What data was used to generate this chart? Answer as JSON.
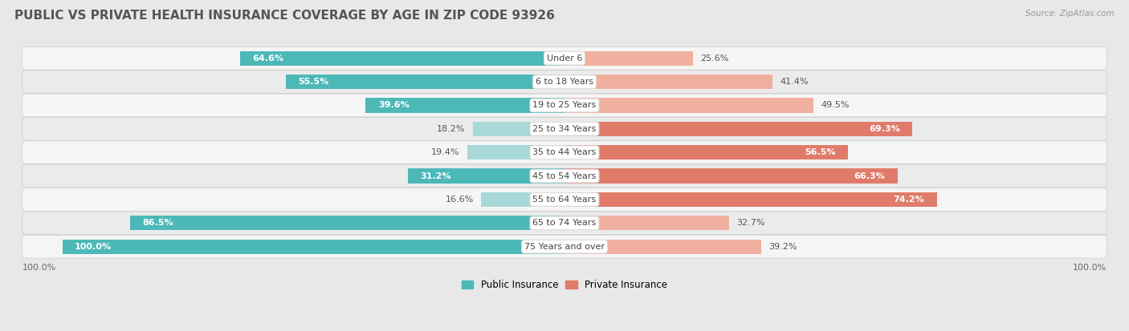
{
  "title": "PUBLIC VS PRIVATE HEALTH INSURANCE COVERAGE BY AGE IN ZIP CODE 93926",
  "source": "Source: ZipAtlas.com",
  "categories": [
    "Under 6",
    "6 to 18 Years",
    "19 to 25 Years",
    "25 to 34 Years",
    "35 to 44 Years",
    "45 to 54 Years",
    "55 to 64 Years",
    "65 to 74 Years",
    "75 Years and over"
  ],
  "public_values": [
    64.6,
    55.5,
    39.6,
    18.2,
    19.4,
    31.2,
    16.6,
    86.5,
    100.0
  ],
  "private_values": [
    25.6,
    41.4,
    49.5,
    69.3,
    56.5,
    66.3,
    74.2,
    32.7,
    39.2
  ],
  "public_color": "#4db8b8",
  "private_color": "#e07b6a",
  "public_color_light": "#a8d8d8",
  "private_color_light": "#f0b0a0",
  "background_color": "#e8e8e8",
  "row_bg_even": "#f5f5f5",
  "row_bg_odd": "#ebebeb",
  "title_fontsize": 11,
  "bar_label_fontsize": 8,
  "cat_label_fontsize": 8,
  "bar_height": 0.62,
  "max_value": 100.0,
  "x_label": "100.0%",
  "legend_labels": [
    "Public Insurance",
    "Private Insurance"
  ],
  "inside_label_threshold_pub": 30,
  "inside_label_threshold_priv": 50
}
